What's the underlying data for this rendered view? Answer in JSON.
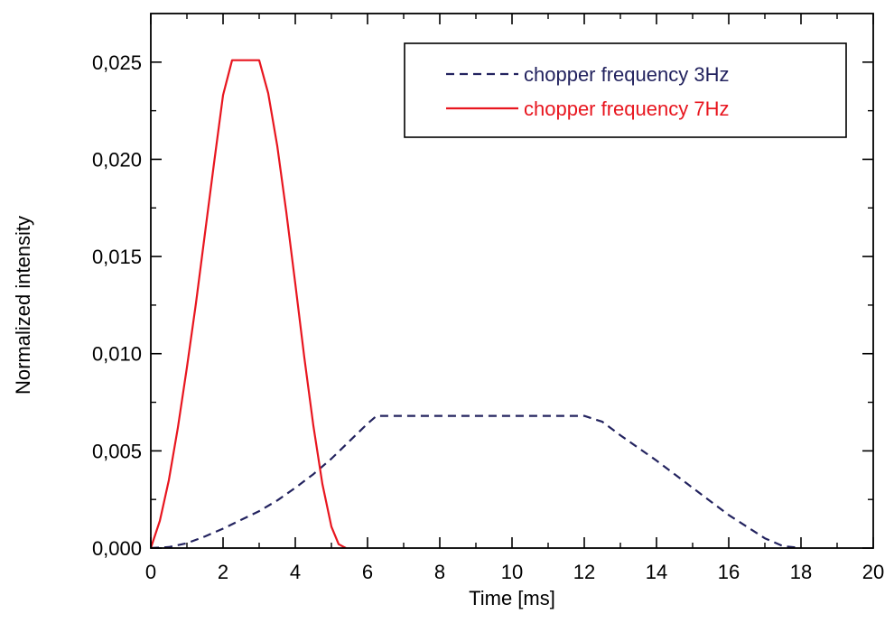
{
  "chart_data": {
    "type": "line",
    "title": "",
    "xlabel": "Time [ms]",
    "ylabel": "Normalized intensity",
    "xlim": [
      0,
      20
    ],
    "ylim": [
      0,
      0.0275
    ],
    "xticks": [
      {
        "value": 0,
        "label": "0"
      },
      {
        "value": 2,
        "label": "2"
      },
      {
        "value": 4,
        "label": "4"
      },
      {
        "value": 6,
        "label": "6"
      },
      {
        "value": 8,
        "label": "8"
      },
      {
        "value": 10,
        "label": "10"
      },
      {
        "value": 12,
        "label": "12"
      },
      {
        "value": 14,
        "label": "14"
      },
      {
        "value": 16,
        "label": "16"
      },
      {
        "value": 18,
        "label": "18"
      },
      {
        "value": 20,
        "label": "20"
      }
    ],
    "yticks": [
      {
        "value": 0,
        "label": "0,000"
      },
      {
        "value": 0.005,
        "label": "0,005"
      },
      {
        "value": 0.01,
        "label": "0,010"
      },
      {
        "value": 0.015,
        "label": "0,015"
      },
      {
        "value": 0.02,
        "label": "0,020"
      },
      {
        "value": 0.025,
        "label": "0,025"
      }
    ],
    "grid": false,
    "legend_position": "top-right",
    "series": [
      {
        "name": "chopper frequency 3Hz",
        "color": "#23235f",
        "style": "dashed",
        "x": [
          0,
          0.5,
          1,
          1.5,
          2,
          2.5,
          3,
          3.5,
          4,
          4.5,
          5,
          5.5,
          6,
          6.25,
          8,
          10,
          12,
          12.5,
          13,
          14,
          15,
          16,
          17,
          17.5,
          18
        ],
        "y": [
          0,
          5e-05,
          0.00025,
          0.0006,
          0.001,
          0.00145,
          0.0019,
          0.00245,
          0.0031,
          0.0038,
          0.0046,
          0.0055,
          0.0064,
          0.0068,
          0.0068,
          0.0068,
          0.0068,
          0.0065,
          0.0058,
          0.0045,
          0.0031,
          0.0017,
          0.0005,
          0.0001,
          0
        ]
      },
      {
        "name": "chopper frequency 7Hz",
        "color": "#e8161f",
        "style": "solid",
        "x": [
          0,
          0.25,
          0.5,
          0.75,
          1,
          1.25,
          1.5,
          1.75,
          2,
          2.25,
          2.5,
          3,
          3.25,
          3.5,
          3.75,
          4,
          4.25,
          4.5,
          4.75,
          5,
          5.2,
          5.4
        ],
        "y": [
          0,
          0.0014,
          0.0035,
          0.0062,
          0.0093,
          0.0126,
          0.0162,
          0.0198,
          0.0233,
          0.0251,
          0.0251,
          0.0251,
          0.0234,
          0.0207,
          0.0173,
          0.0136,
          0.0098,
          0.0063,
          0.0033,
          0.0011,
          0.0002,
          0
        ]
      }
    ]
  }
}
